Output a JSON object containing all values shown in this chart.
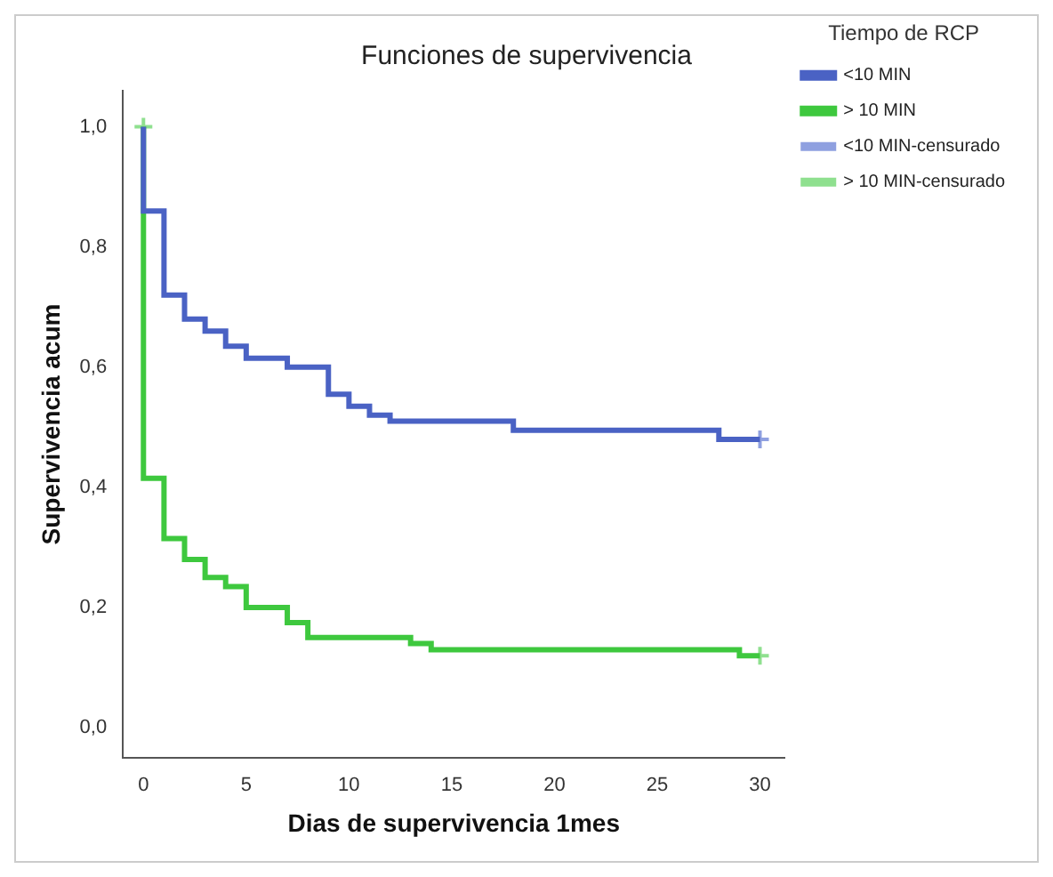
{
  "chart_data": {
    "type": "step",
    "title": "Funciones de supervivencia",
    "xlabel": "Dias de supervivencia 1mes",
    "ylabel": "Supervivencia acum",
    "legend_title": "Tiempo de RCP",
    "legend": "top right",
    "grid": false,
    "xlim": [
      -1,
      31.2
    ],
    "xticks": [
      0,
      5,
      10,
      15,
      20,
      25,
      30
    ],
    "ylim": [
      -0.05,
      1.06
    ],
    "yticks": [
      {
        "value": 0,
        "label": "0,0"
      },
      {
        "value": 0.2,
        "label": "0,2"
      },
      {
        "value": 0.4,
        "label": "0,4"
      },
      {
        "value": 0.6,
        "label": "0,6"
      },
      {
        "value": 0.8,
        "label": "0,8"
      },
      {
        "value": 1,
        "label": "1,0"
      }
    ],
    "series": [
      {
        "name": "<10 MIN",
        "color": "#4a62c4",
        "marker": "none",
        "x": [
          0,
          0,
          1,
          2,
          3,
          4,
          5,
          7,
          9,
          10,
          11,
          12,
          18,
          28,
          30
        ],
        "values": [
          1,
          0.86,
          0.72,
          0.68,
          0.66,
          0.635,
          0.615,
          0.6,
          0.555,
          0.535,
          0.52,
          0.51,
          0.495,
          0.48,
          0.48
        ]
      },
      {
        "name": "> 10 MIN",
        "color": "#3ec83e",
        "marker": "none",
        "x": [
          0,
          0,
          1,
          2,
          3,
          4,
          5,
          7,
          8,
          13,
          14,
          29,
          30
        ],
        "values": [
          1,
          0.415,
          0.315,
          0.28,
          0.25,
          0.235,
          0.2,
          0.175,
          0.15,
          0.14,
          0.13,
          0.12,
          0.12
        ]
      },
      {
        "name": "<10 MIN-censurado",
        "type": "scatter",
        "color": "#8fa0e0",
        "marker": "cross",
        "x": [
          30
        ],
        "values": [
          0.48
        ]
      },
      {
        "name": "> 10 MIN-censurado",
        "type": "scatter",
        "color": "#8fe08f",
        "marker": "cross",
        "x": [
          0,
          30
        ],
        "values": [
          1,
          0.12
        ]
      }
    ]
  }
}
